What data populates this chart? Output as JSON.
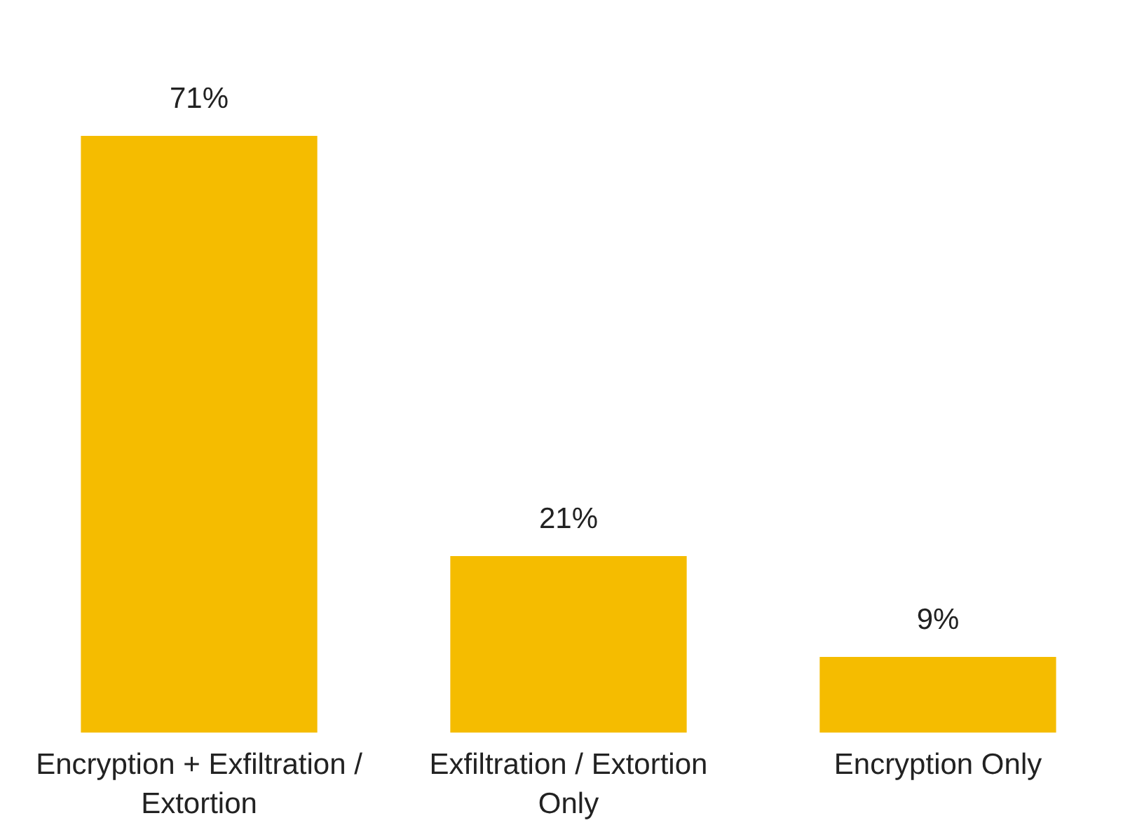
{
  "chart_data": {
    "type": "bar",
    "categories": [
      "Encryption + Exfiltration / Extortion",
      "Exfiltration / Extortion Only",
      "Encryption Only"
    ],
    "values": [
      71,
      21,
      9
    ],
    "value_labels": [
      "71%",
      "21%",
      "9%"
    ],
    "color": "#f5bc00"
  }
}
